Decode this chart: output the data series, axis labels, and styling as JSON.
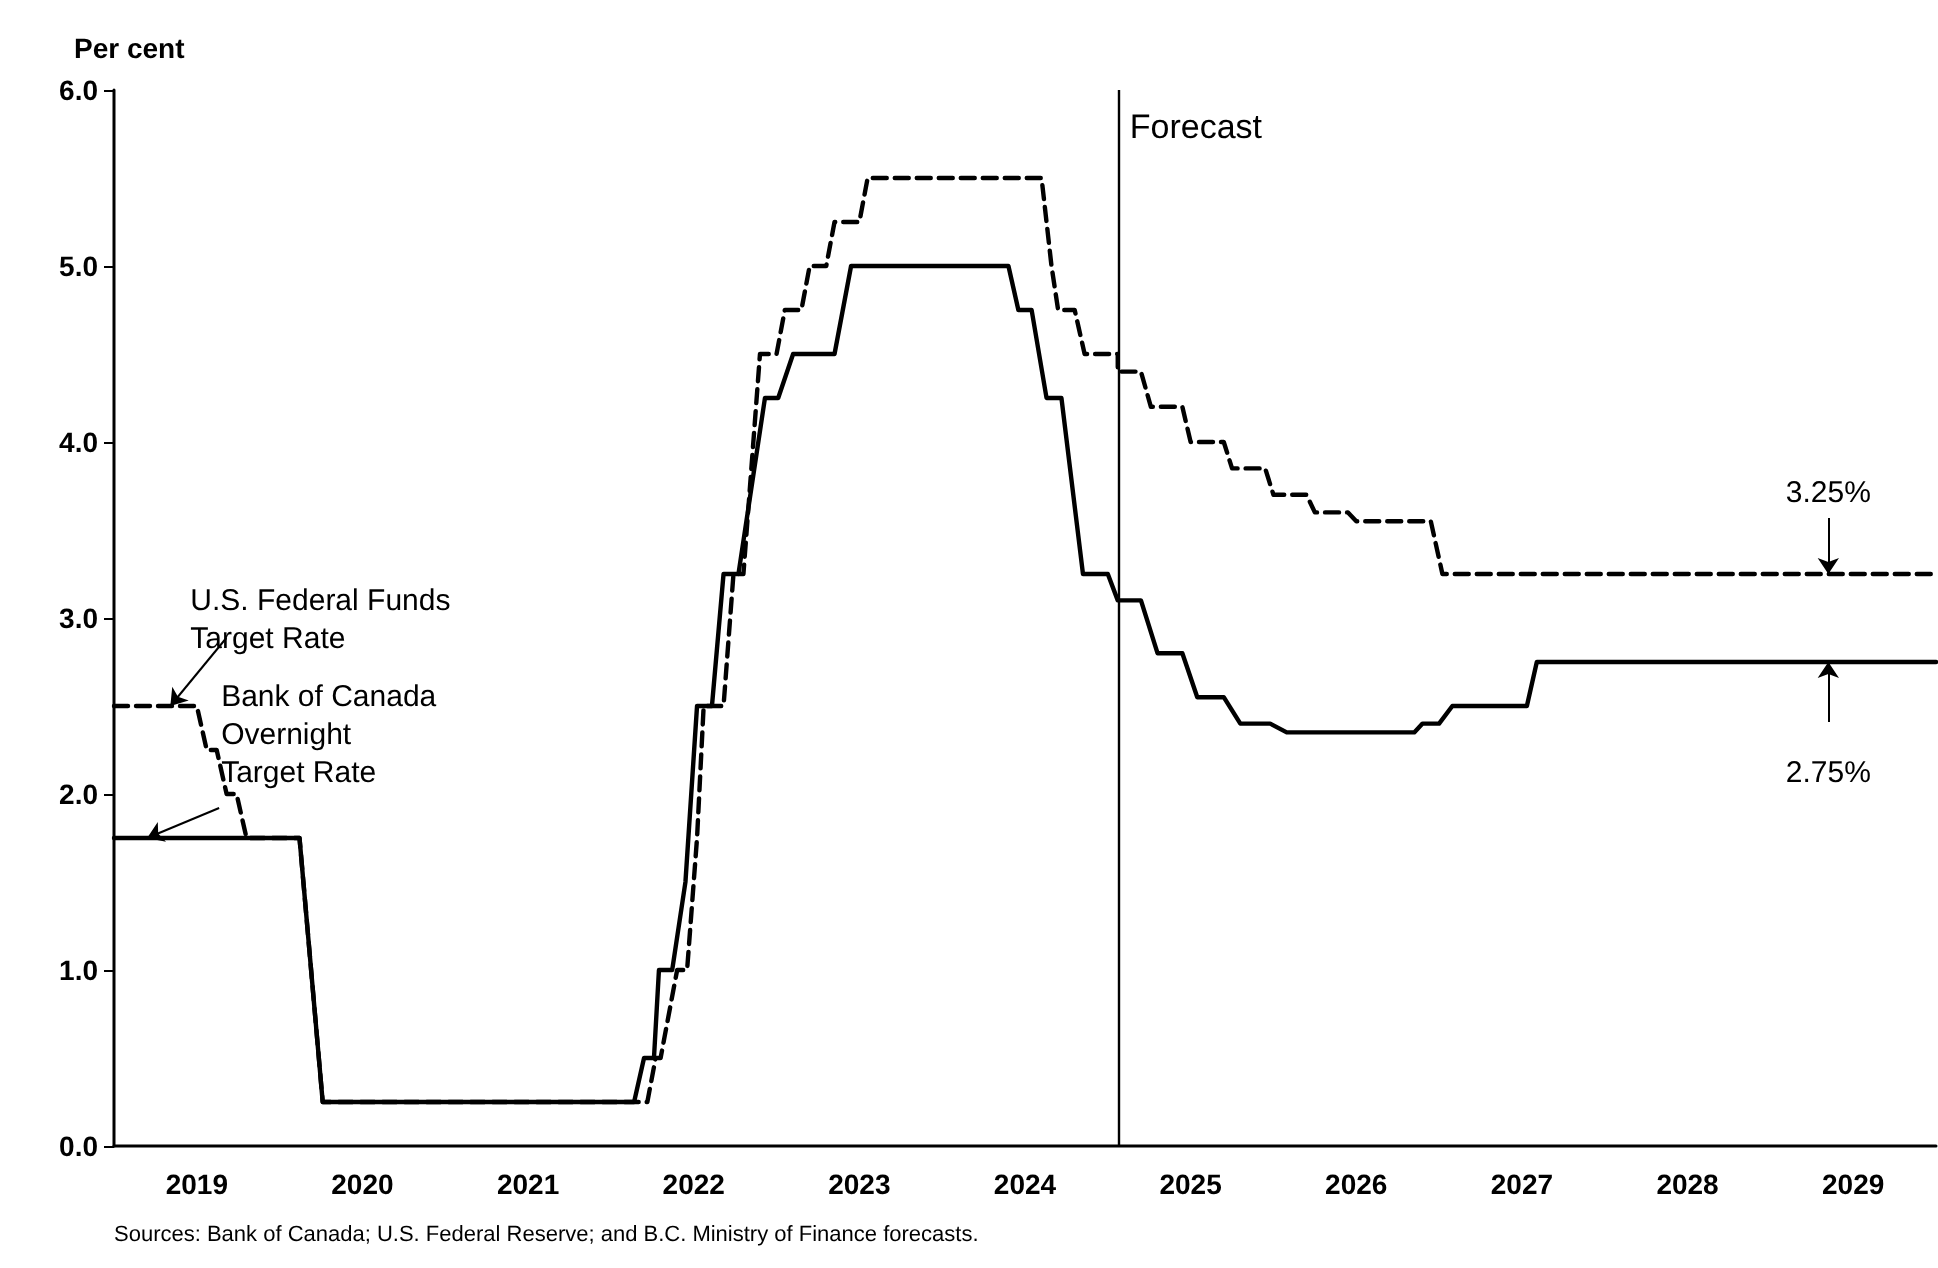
{
  "chart_data": {
    "type": "line",
    "ylabel": "Per cent",
    "xlim": [
      2019,
      2030
    ],
    "xticks": [
      {
        "value": 2019.5,
        "label": "2019"
      },
      {
        "value": 2020.5,
        "label": "2020"
      },
      {
        "value": 2021.5,
        "label": "2021"
      },
      {
        "value": 2022.5,
        "label": "2022"
      },
      {
        "value": 2023.5,
        "label": "2023"
      },
      {
        "value": 2024.5,
        "label": "2024"
      },
      {
        "value": 2025.5,
        "label": "2025"
      },
      {
        "value": 2026.5,
        "label": "2026"
      },
      {
        "value": 2027.5,
        "label": "2027"
      },
      {
        "value": 2028.5,
        "label": "2028"
      },
      {
        "value": 2029.5,
        "label": "2029"
      }
    ],
    "ylim": [
      0,
      6
    ],
    "yticks": [
      {
        "value": 0,
        "label": "0.0"
      },
      {
        "value": 1,
        "label": "1.0"
      },
      {
        "value": 2,
        "label": "2.0"
      },
      {
        "value": 3,
        "label": "3.0"
      },
      {
        "value": 4,
        "label": "4.0"
      },
      {
        "value": 5,
        "label": "5.0"
      },
      {
        "value": 6,
        "label": "6.0"
      }
    ],
    "grid": false,
    "marker": "none",
    "series": [
      {
        "color": "#000000",
        "line_style": "dashed",
        "x": [
          2019,
          2019.5,
          2019.56,
          2019.62,
          2019.68,
          2019.74,
          2019.8,
          2020.12,
          2020.26,
          2022.22,
          2022.27,
          2022.3,
          2022.4,
          2022.46,
          2022.52,
          2022.56,
          2022.68,
          2022.74,
          2022.8,
          2022.9,
          2023.0,
          2023.05,
          2023.15,
          2023.2,
          2023.3,
          2023.35,
          2023.5,
          2023.55,
          2024.6,
          2024.66,
          2024.7,
          2024.8,
          2024.86,
          2025.06,
          2025.06,
          2025.2,
          2025.26,
          2025.45,
          2025.5,
          2025.7,
          2025.75,
          2025.95,
          2026.0,
          2026.2,
          2026.25,
          2026.45,
          2026.5,
          2026.95,
          2027.02,
          2030
        ],
        "values": [
          2.5,
          2.5,
          2.25,
          2.25,
          2.0,
          2.0,
          1.75,
          1.75,
          0.25,
          0.25,
          0.5,
          0.5,
          1.0,
          1.0,
          1.75,
          2.5,
          2.5,
          3.25,
          3.25,
          4.5,
          4.5,
          4.75,
          4.75,
          5.0,
          5.0,
          5.25,
          5.25,
          5.5,
          5.5,
          5.0,
          4.75,
          4.75,
          4.5,
          4.5,
          4.4,
          4.4,
          4.2,
          4.2,
          4.0,
          4.0,
          3.85,
          3.85,
          3.7,
          3.7,
          3.6,
          3.6,
          3.55,
          3.55,
          3.25,
          3.25
        ]
      },
      {
        "color": "#000000",
        "line_style": "solid",
        "x": [
          2019,
          2020.12,
          2020.26,
          2022.14,
          2022.2,
          2022.26,
          2022.29,
          2022.37,
          2022.45,
          2022.52,
          2022.61,
          2022.68,
          2022.77,
          2022.93,
          2023.01,
          2023.1,
          2023.35,
          2023.45,
          2024.4,
          2024.46,
          2024.54,
          2024.63,
          2024.72,
          2024.85,
          2025.0,
          2025.06,
          2025.2,
          2025.3,
          2025.45,
          2025.54,
          2025.7,
          2025.8,
          2025.98,
          2026.08,
          2026.85,
          2026.9,
          2027.0,
          2027.08,
          2027.53,
          2027.59,
          2030
        ],
        "values": [
          1.75,
          1.75,
          0.25,
          0.25,
          0.5,
          0.5,
          1.0,
          1.0,
          1.5,
          2.5,
          2.5,
          3.25,
          3.25,
          4.25,
          4.25,
          4.5,
          4.5,
          5.0,
          5.0,
          4.75,
          4.75,
          4.25,
          4.25,
          3.25,
          3.25,
          3.1,
          3.1,
          2.8,
          2.8,
          2.55,
          2.55,
          2.4,
          2.4,
          2.35,
          2.35,
          2.4,
          2.4,
          2.5,
          2.5,
          2.75,
          2.75
        ]
      }
    ],
    "ref_lines": [
      {
        "axis": "x",
        "value": 2025.06,
        "label": "Forecast"
      }
    ],
    "annotations": [
      {
        "text": "U.S. Federal Funds Target Rate",
        "x": 2019.34,
        "y": 2.5
      },
      {
        "text": "Bank of Canada Overnight Target Rate",
        "x": 2019.2,
        "y": 1.75
      },
      {
        "text": "3.25%",
        "x": 2029.35,
        "y": 3.25
      },
      {
        "text": "2.75%",
        "x": 2029.35,
        "y": 2.75
      },
      "Sources: Bank of Canada; U.S. Federal Reserve; and B.C. Ministry of Finance forecasts."
    ]
  }
}
